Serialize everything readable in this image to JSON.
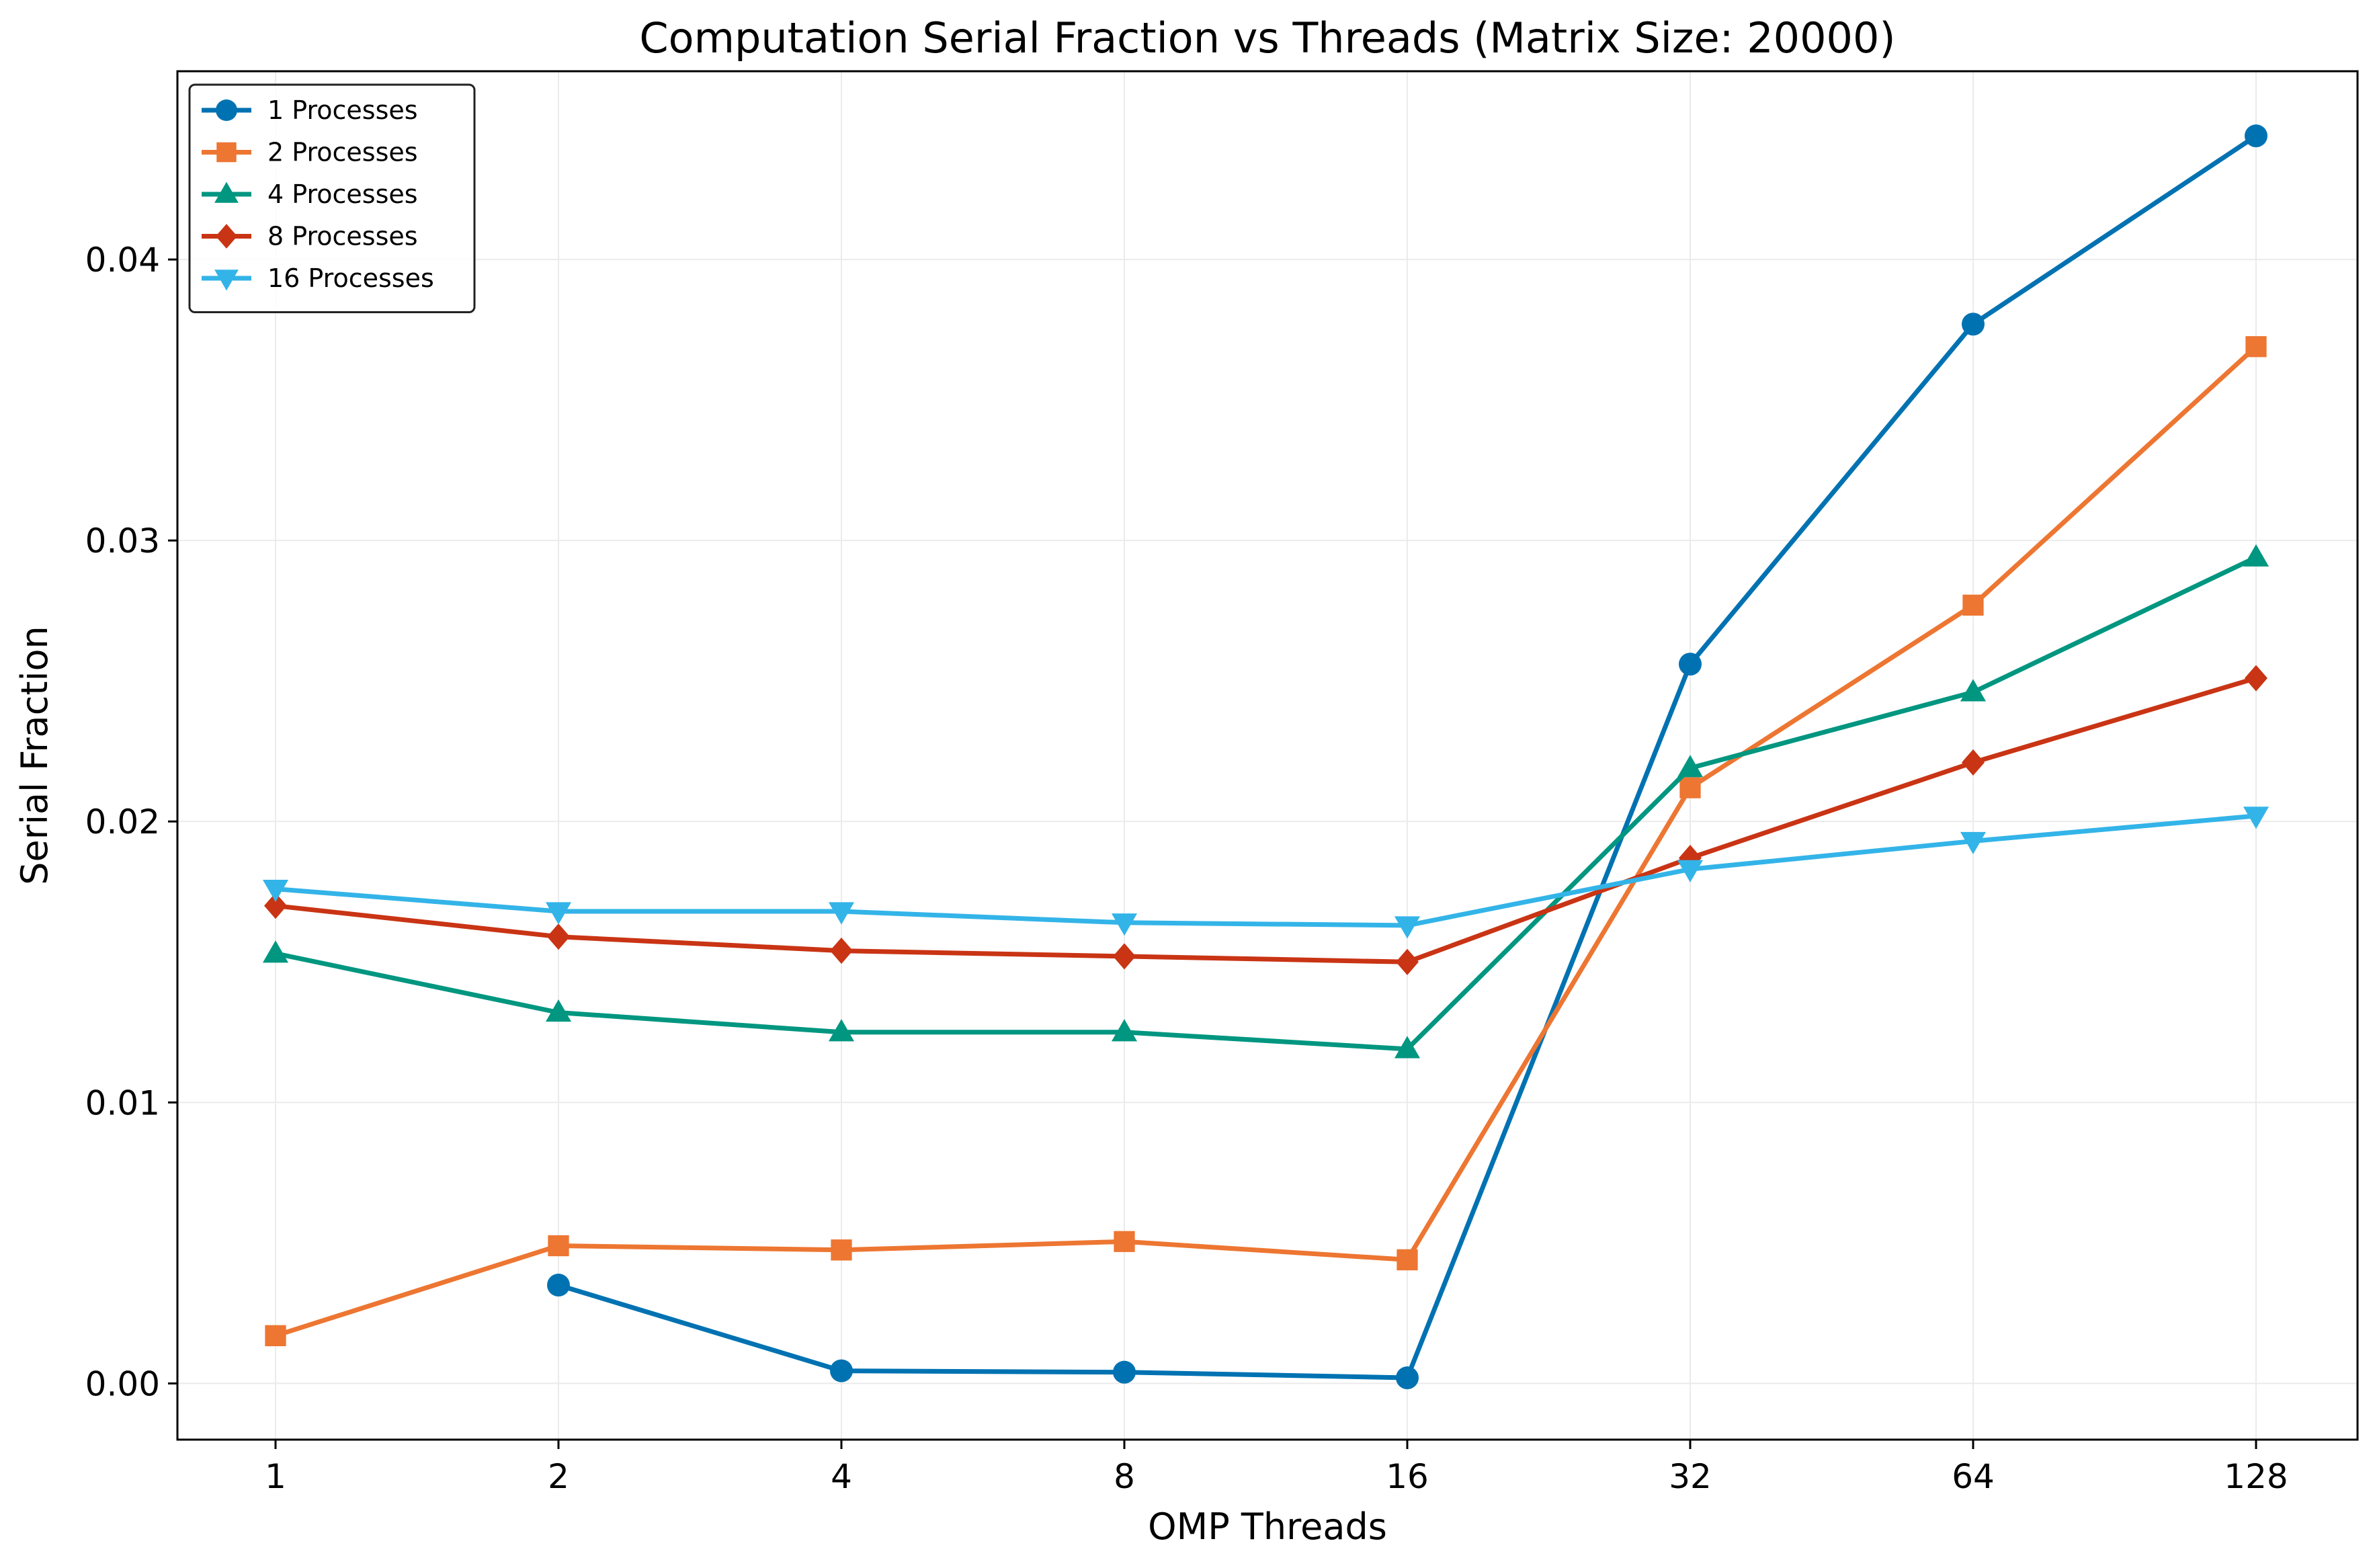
{
  "chart_data": {
    "type": "line",
    "title": "Computation Serial Fraction vs Threads (Matrix Size: 20000)",
    "xlabel": "OMP Threads",
    "ylabel": "Serial Fraction",
    "x_scale": "log2",
    "x": [
      "1",
      "2",
      "4",
      "8",
      "16",
      "32",
      "64",
      "128"
    ],
    "y_ticks": [
      "0.00",
      "0.01",
      "0.02",
      "0.03",
      "0.04"
    ],
    "y_tick_values": [
      0.0,
      0.01,
      0.02,
      0.03,
      0.04
    ],
    "ylim": [
      -0.002,
      0.0467
    ],
    "grid": true,
    "legend_position": "top-left",
    "series": [
      {
        "name": "1 Processes",
        "color": "#0072b2",
        "marker": "circle",
        "values": [
          null,
          0.0035,
          0.00045,
          0.0004,
          0.0002,
          0.0256,
          0.0377,
          0.0444
        ]
      },
      {
        "name": "2 Processes",
        "color": "#ed7632",
        "marker": "square",
        "values": [
          0.0017,
          0.0049,
          0.00475,
          0.00505,
          0.0044,
          0.0212,
          0.0277,
          0.0369
        ]
      },
      {
        "name": "4 Processes",
        "color": "#009680",
        "marker": "triangle-up",
        "values": [
          0.0153,
          0.0132,
          0.0125,
          0.0125,
          0.0119,
          0.0219,
          0.0246,
          0.0294
        ]
      },
      {
        "name": "8 Processes",
        "color": "#c93414",
        "marker": "diamond",
        "values": [
          0.017,
          0.0159,
          0.0154,
          0.0152,
          0.015,
          0.0187,
          0.0221,
          0.0251
        ]
      },
      {
        "name": "16 Processes",
        "color": "#33b4e8",
        "marker": "triangle-down",
        "values": [
          0.0176,
          0.0168,
          0.0168,
          0.0164,
          0.0163,
          0.0183,
          0.0193,
          0.0202
        ]
      }
    ]
  }
}
